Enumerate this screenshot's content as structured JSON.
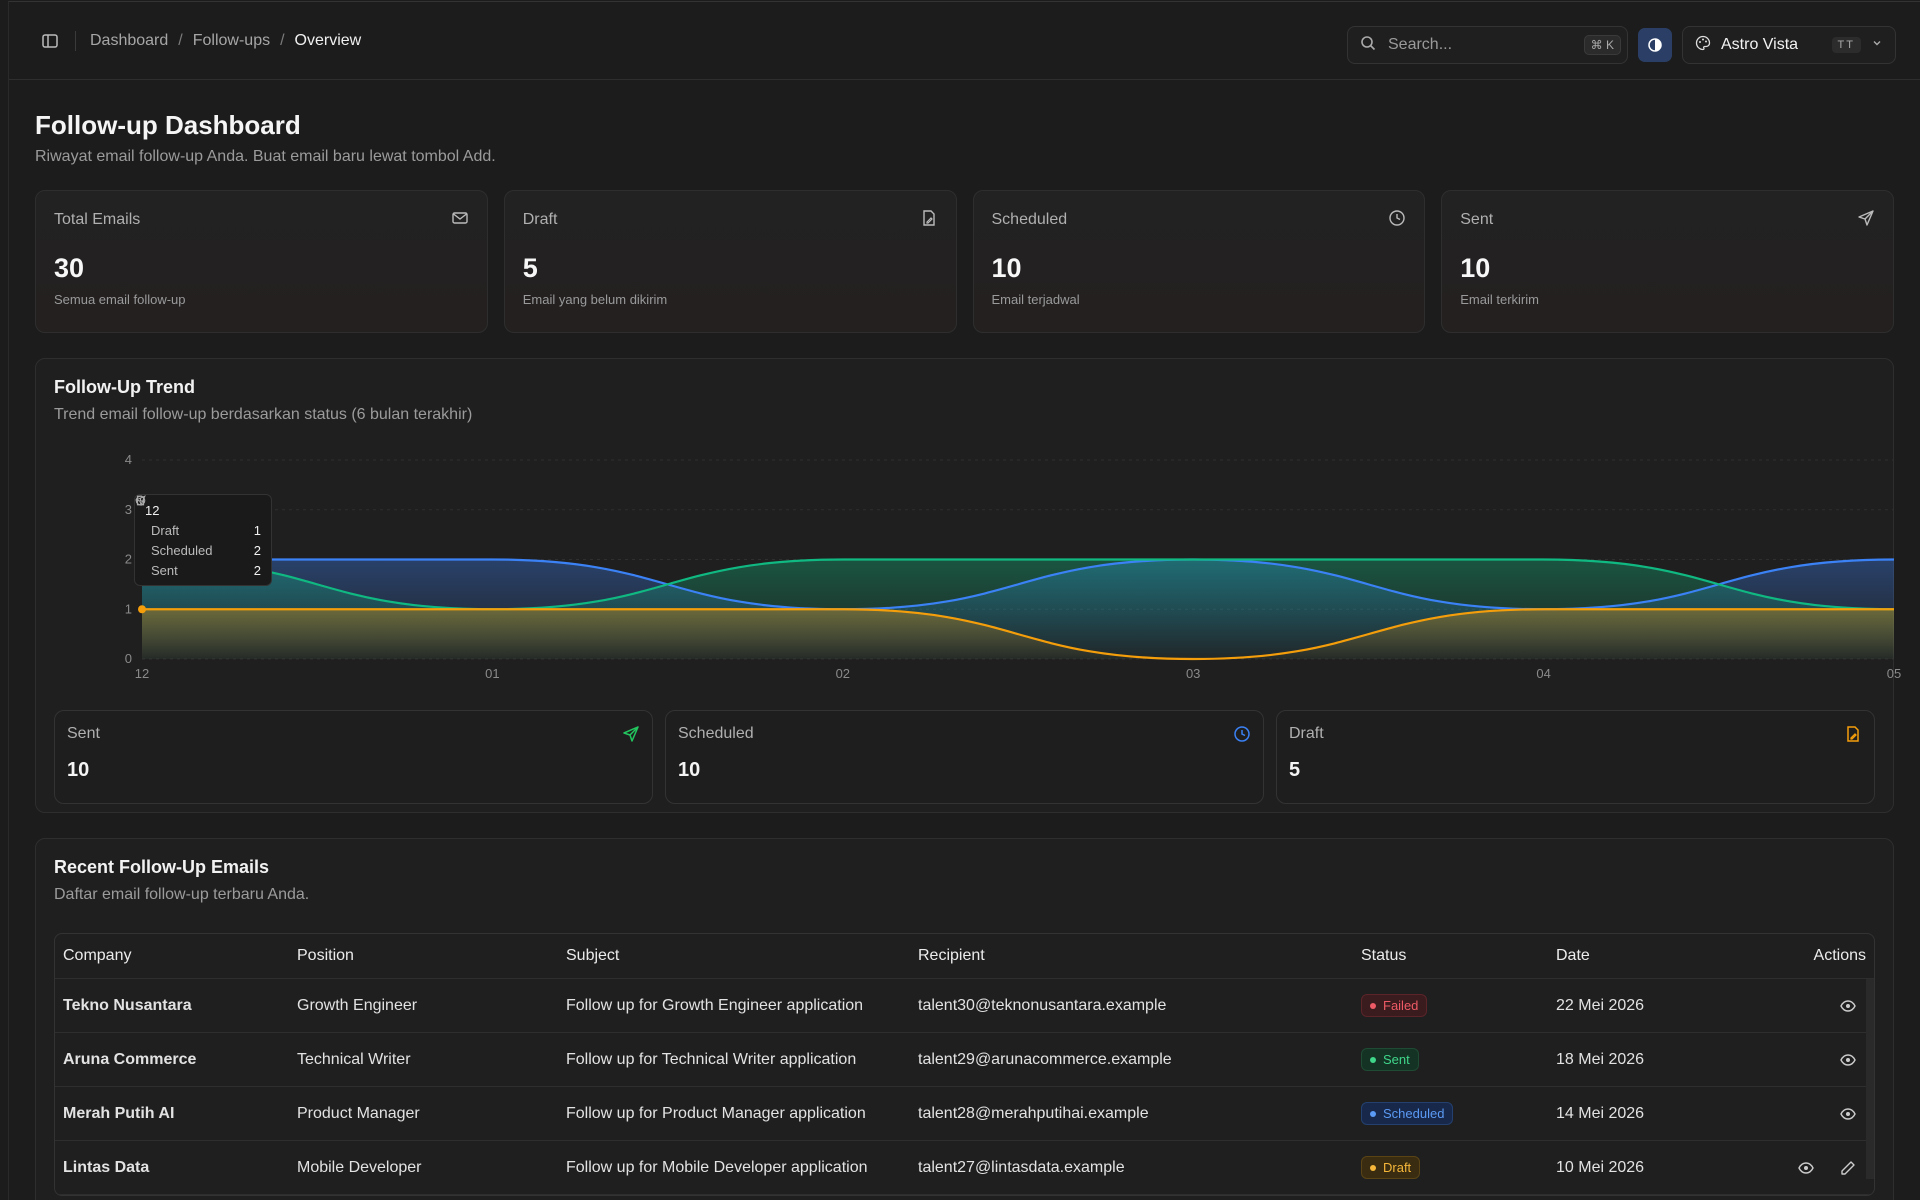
{
  "header": {
    "breadcrumb": [
      "Dashboard",
      "Follow-ups",
      "Overview"
    ],
    "search_placeholder": "Search...",
    "search_shortcut": "⌘ K",
    "workspace_name": "Astro Vista",
    "workspace_initials": "TT"
  },
  "page": {
    "title": "Follow-up Dashboard",
    "subtitle": "Riwayat email follow-up Anda. Buat email baru lewat tombol Add."
  },
  "stats": [
    {
      "label": "Total Emails",
      "value": "30",
      "desc": "Semua email follow-up",
      "icon": "mail-icon"
    },
    {
      "label": "Draft",
      "value": "5",
      "desc": "Email yang belum dikirim",
      "icon": "file-edit-icon"
    },
    {
      "label": "Scheduled",
      "value": "10",
      "desc": "Email terjadwal",
      "icon": "clock-icon"
    },
    {
      "label": "Sent",
      "value": "10",
      "desc": "Email terkirim",
      "icon": "send-icon"
    }
  ],
  "trend": {
    "title": "Follow-Up Trend",
    "subtitle": "Trend email follow-up berdasarkan status (6 bulan terakhir)",
    "tooltip": {
      "title": "12",
      "rows": [
        {
          "name": "Draft",
          "value": "1"
        },
        {
          "name": "Scheduled",
          "value": "2"
        },
        {
          "name": "Sent",
          "value": "2"
        }
      ]
    },
    "summary": [
      {
        "label": "Sent",
        "value": "10",
        "color": "#22c55e",
        "icon": "send-icon"
      },
      {
        "label": "Scheduled",
        "value": "10",
        "color": "#3b82f6",
        "icon": "clock-icon"
      },
      {
        "label": "Draft",
        "value": "5",
        "color": "#f59e0b",
        "icon": "file-edit-icon"
      }
    ]
  },
  "chart_data": {
    "type": "area",
    "categories": [
      "12",
      "01",
      "02",
      "03",
      "04",
      "05"
    ],
    "ylim": [
      0,
      4
    ],
    "yticks": [
      "0",
      "1",
      "2",
      "3",
      "4"
    ],
    "series": [
      {
        "name": "Scheduled",
        "color": "#3b82f6",
        "values": [
          2,
          2,
          1,
          2,
          1,
          2
        ]
      },
      {
        "name": "Sent",
        "color": "#10b981",
        "values": [
          2,
          1,
          2,
          2,
          2,
          1
        ]
      },
      {
        "name": "Draft",
        "color": "#f59e0b",
        "values": [
          1,
          1,
          1,
          0,
          1,
          1
        ]
      }
    ]
  },
  "recent": {
    "title": "Recent Follow-Up Emails",
    "subtitle": "Daftar email follow-up terbaru Anda.",
    "columns": [
      "Company",
      "Position",
      "Subject",
      "Recipient",
      "Status",
      "Date",
      "Actions"
    ],
    "rows": [
      {
        "company": "Tekno Nusantara",
        "position": "Growth Engineer",
        "subject": "Follow up for Growth Engineer application",
        "recipient": "talent30@teknonusantara.example",
        "status": "Failed",
        "date": "22 Mei 2026"
      },
      {
        "company": "Aruna Commerce",
        "position": "Technical Writer",
        "subject": "Follow up for Technical Writer application",
        "recipient": "talent29@arunacommerce.example",
        "status": "Sent",
        "date": "18 Mei 2026"
      },
      {
        "company": "Merah Putih AI",
        "position": "Product Manager",
        "subject": "Follow up for Product Manager application",
        "recipient": "talent28@merahputihai.example",
        "status": "Scheduled",
        "date": "14 Mei 2026"
      },
      {
        "company": "Lintas Data",
        "position": "Mobile Developer",
        "subject": "Follow up for Mobile Developer application",
        "recipient": "talent27@lintasdata.example",
        "status": "Draft",
        "date": "10 Mei 2026"
      }
    ]
  }
}
